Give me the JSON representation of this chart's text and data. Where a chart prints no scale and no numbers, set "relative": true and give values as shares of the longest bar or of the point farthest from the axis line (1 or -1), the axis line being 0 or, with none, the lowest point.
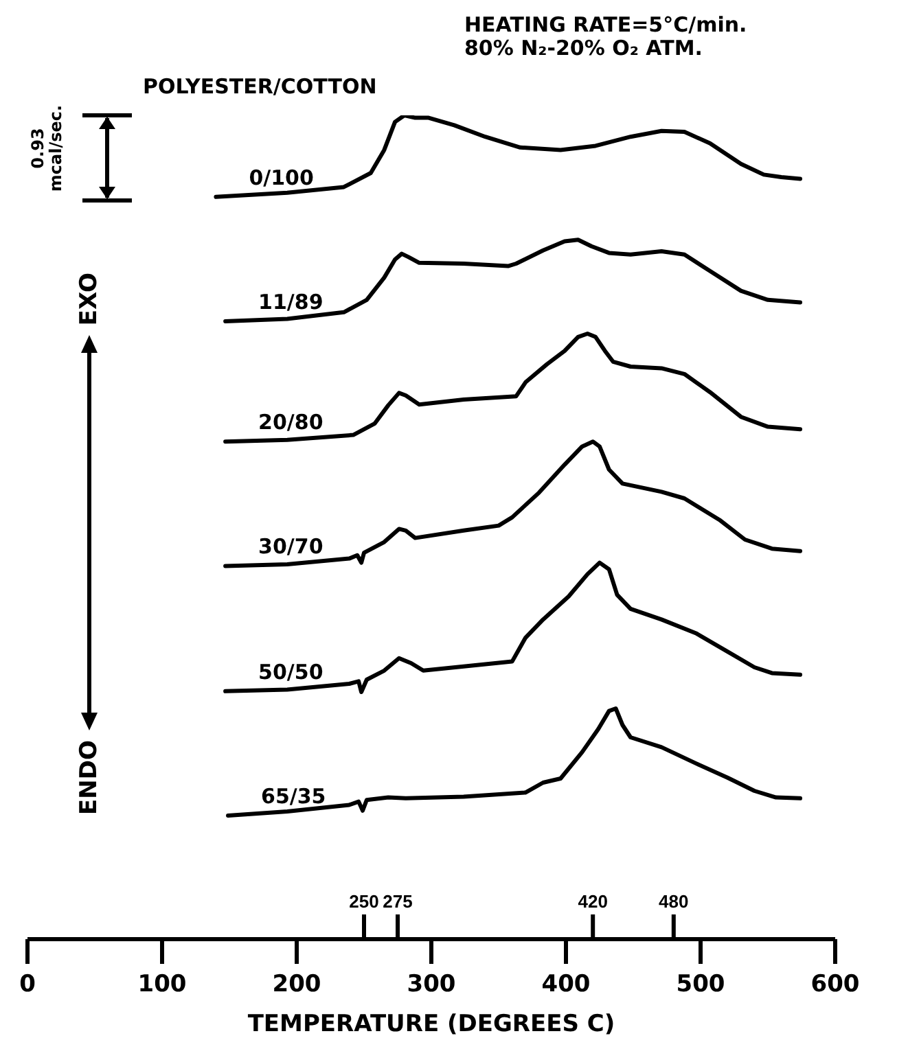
{
  "chart_data": {
    "type": "line",
    "relative": true,
    "xlabel": "TEMPERATURE (DEGREES C)",
    "ylabel": "ENDO EXO",
    "annotations": [
      "HEATING RATE=5°C/min.",
      "80% N₂-20% O₂ ATM.",
      "POLYESTER/COTTON",
      "0.93 mcal/sec."
    ],
    "xlim": [
      0,
      600
    ],
    "xticks": [
      0,
      100,
      200,
      300,
      400,
      500,
      600
    ],
    "x2lim": [
      0,
      600
    ],
    "x2ticks": [
      250,
      275,
      420,
      480
    ],
    "marker": "none",
    "line_style": "solid",
    "series": [
      {
        "name": "0/100",
        "color": "#000000",
        "x": [
          140,
          193,
          235,
          255,
          265,
          273,
          280,
          288,
          298,
          317,
          340,
          366,
          396,
          422,
          448,
          471,
          488,
          507,
          530,
          547,
          560,
          574
        ],
        "values": [
          0.901,
          0.906,
          0.913,
          0.93,
          0.958,
          0.992,
          1.0,
          0.997,
          0.997,
          0.988,
          0.974,
          0.961,
          0.958,
          0.963,
          0.974,
          0.981,
          0.98,
          0.966,
          0.941,
          0.928,
          0.925,
          0.923
        ]
      },
      {
        "name": "11/89",
        "color": "#000000",
        "x": [
          147,
          193,
          235,
          252,
          265,
          273,
          278,
          283,
          291,
          324,
          357,
          363,
          383,
          399,
          409,
          419,
          432,
          448,
          471,
          488,
          507,
          530,
          550,
          574
        ],
        "values": [
          0.75,
          0.753,
          0.761,
          0.776,
          0.803,
          0.825,
          0.832,
          0.828,
          0.821,
          0.82,
          0.817,
          0.82,
          0.836,
          0.847,
          0.849,
          0.841,
          0.833,
          0.831,
          0.835,
          0.831,
          0.811,
          0.787,
          0.776,
          0.773
        ]
      },
      {
        "name": "20/80",
        "color": "#000000",
        "x": [
          147,
          193,
          242,
          258,
          268,
          276,
          281,
          291,
          324,
          363,
          370,
          386,
          399,
          409,
          416,
          422,
          429,
          435,
          448,
          471,
          488,
          507,
          530,
          550,
          574
        ],
        "values": [
          0.604,
          0.606,
          0.612,
          0.626,
          0.648,
          0.663,
          0.66,
          0.649,
          0.655,
          0.659,
          0.676,
          0.698,
          0.714,
          0.731,
          0.735,
          0.731,
          0.714,
          0.701,
          0.695,
          0.693,
          0.686,
          0.664,
          0.634,
          0.622,
          0.619
        ]
      },
      {
        "name": "30/70",
        "color": "#000000",
        "x": [
          147,
          193,
          239,
          245,
          248,
          250,
          265,
          276,
          281,
          288,
          324,
          350,
          360,
          380,
          399,
          412,
          420,
          425,
          432,
          442,
          471,
          488,
          514,
          533,
          553,
          574
        ],
        "values": [
          0.453,
          0.455,
          0.462,
          0.466,
          0.457,
          0.469,
          0.482,
          0.498,
          0.496,
          0.487,
          0.496,
          0.502,
          0.512,
          0.542,
          0.576,
          0.598,
          0.604,
          0.598,
          0.57,
          0.553,
          0.543,
          0.535,
          0.509,
          0.485,
          0.474,
          0.471
        ]
      },
      {
        "name": "50/50",
        "color": "#000000",
        "x": [
          147,
          193,
          239,
          246,
          248,
          252,
          265,
          276,
          285,
          294,
          324,
          360,
          370,
          383,
          402,
          416,
          425,
          432,
          438,
          448,
          471,
          497,
          520,
          540,
          553,
          574
        ],
        "values": [
          0.301,
          0.303,
          0.31,
          0.313,
          0.3,
          0.315,
          0.326,
          0.341,
          0.335,
          0.326,
          0.331,
          0.337,
          0.366,
          0.388,
          0.416,
          0.443,
          0.457,
          0.449,
          0.418,
          0.401,
          0.388,
          0.371,
          0.349,
          0.33,
          0.323,
          0.321
        ]
      },
      {
        "name": "65/35",
        "color": "#000000",
        "x": [
          149,
          193,
          239,
          246,
          249,
          252,
          268,
          281,
          324,
          370,
          383,
          396,
          412,
          424,
          432,
          437,
          442,
          448,
          471,
          497,
          520,
          540,
          556,
          574
        ],
        "values": [
          0.15,
          0.155,
          0.163,
          0.167,
          0.156,
          0.169,
          0.172,
          0.171,
          0.173,
          0.178,
          0.19,
          0.195,
          0.227,
          0.255,
          0.277,
          0.28,
          0.26,
          0.245,
          0.233,
          0.213,
          0.196,
          0.18,
          0.172,
          0.171
        ]
      }
    ]
  }
}
